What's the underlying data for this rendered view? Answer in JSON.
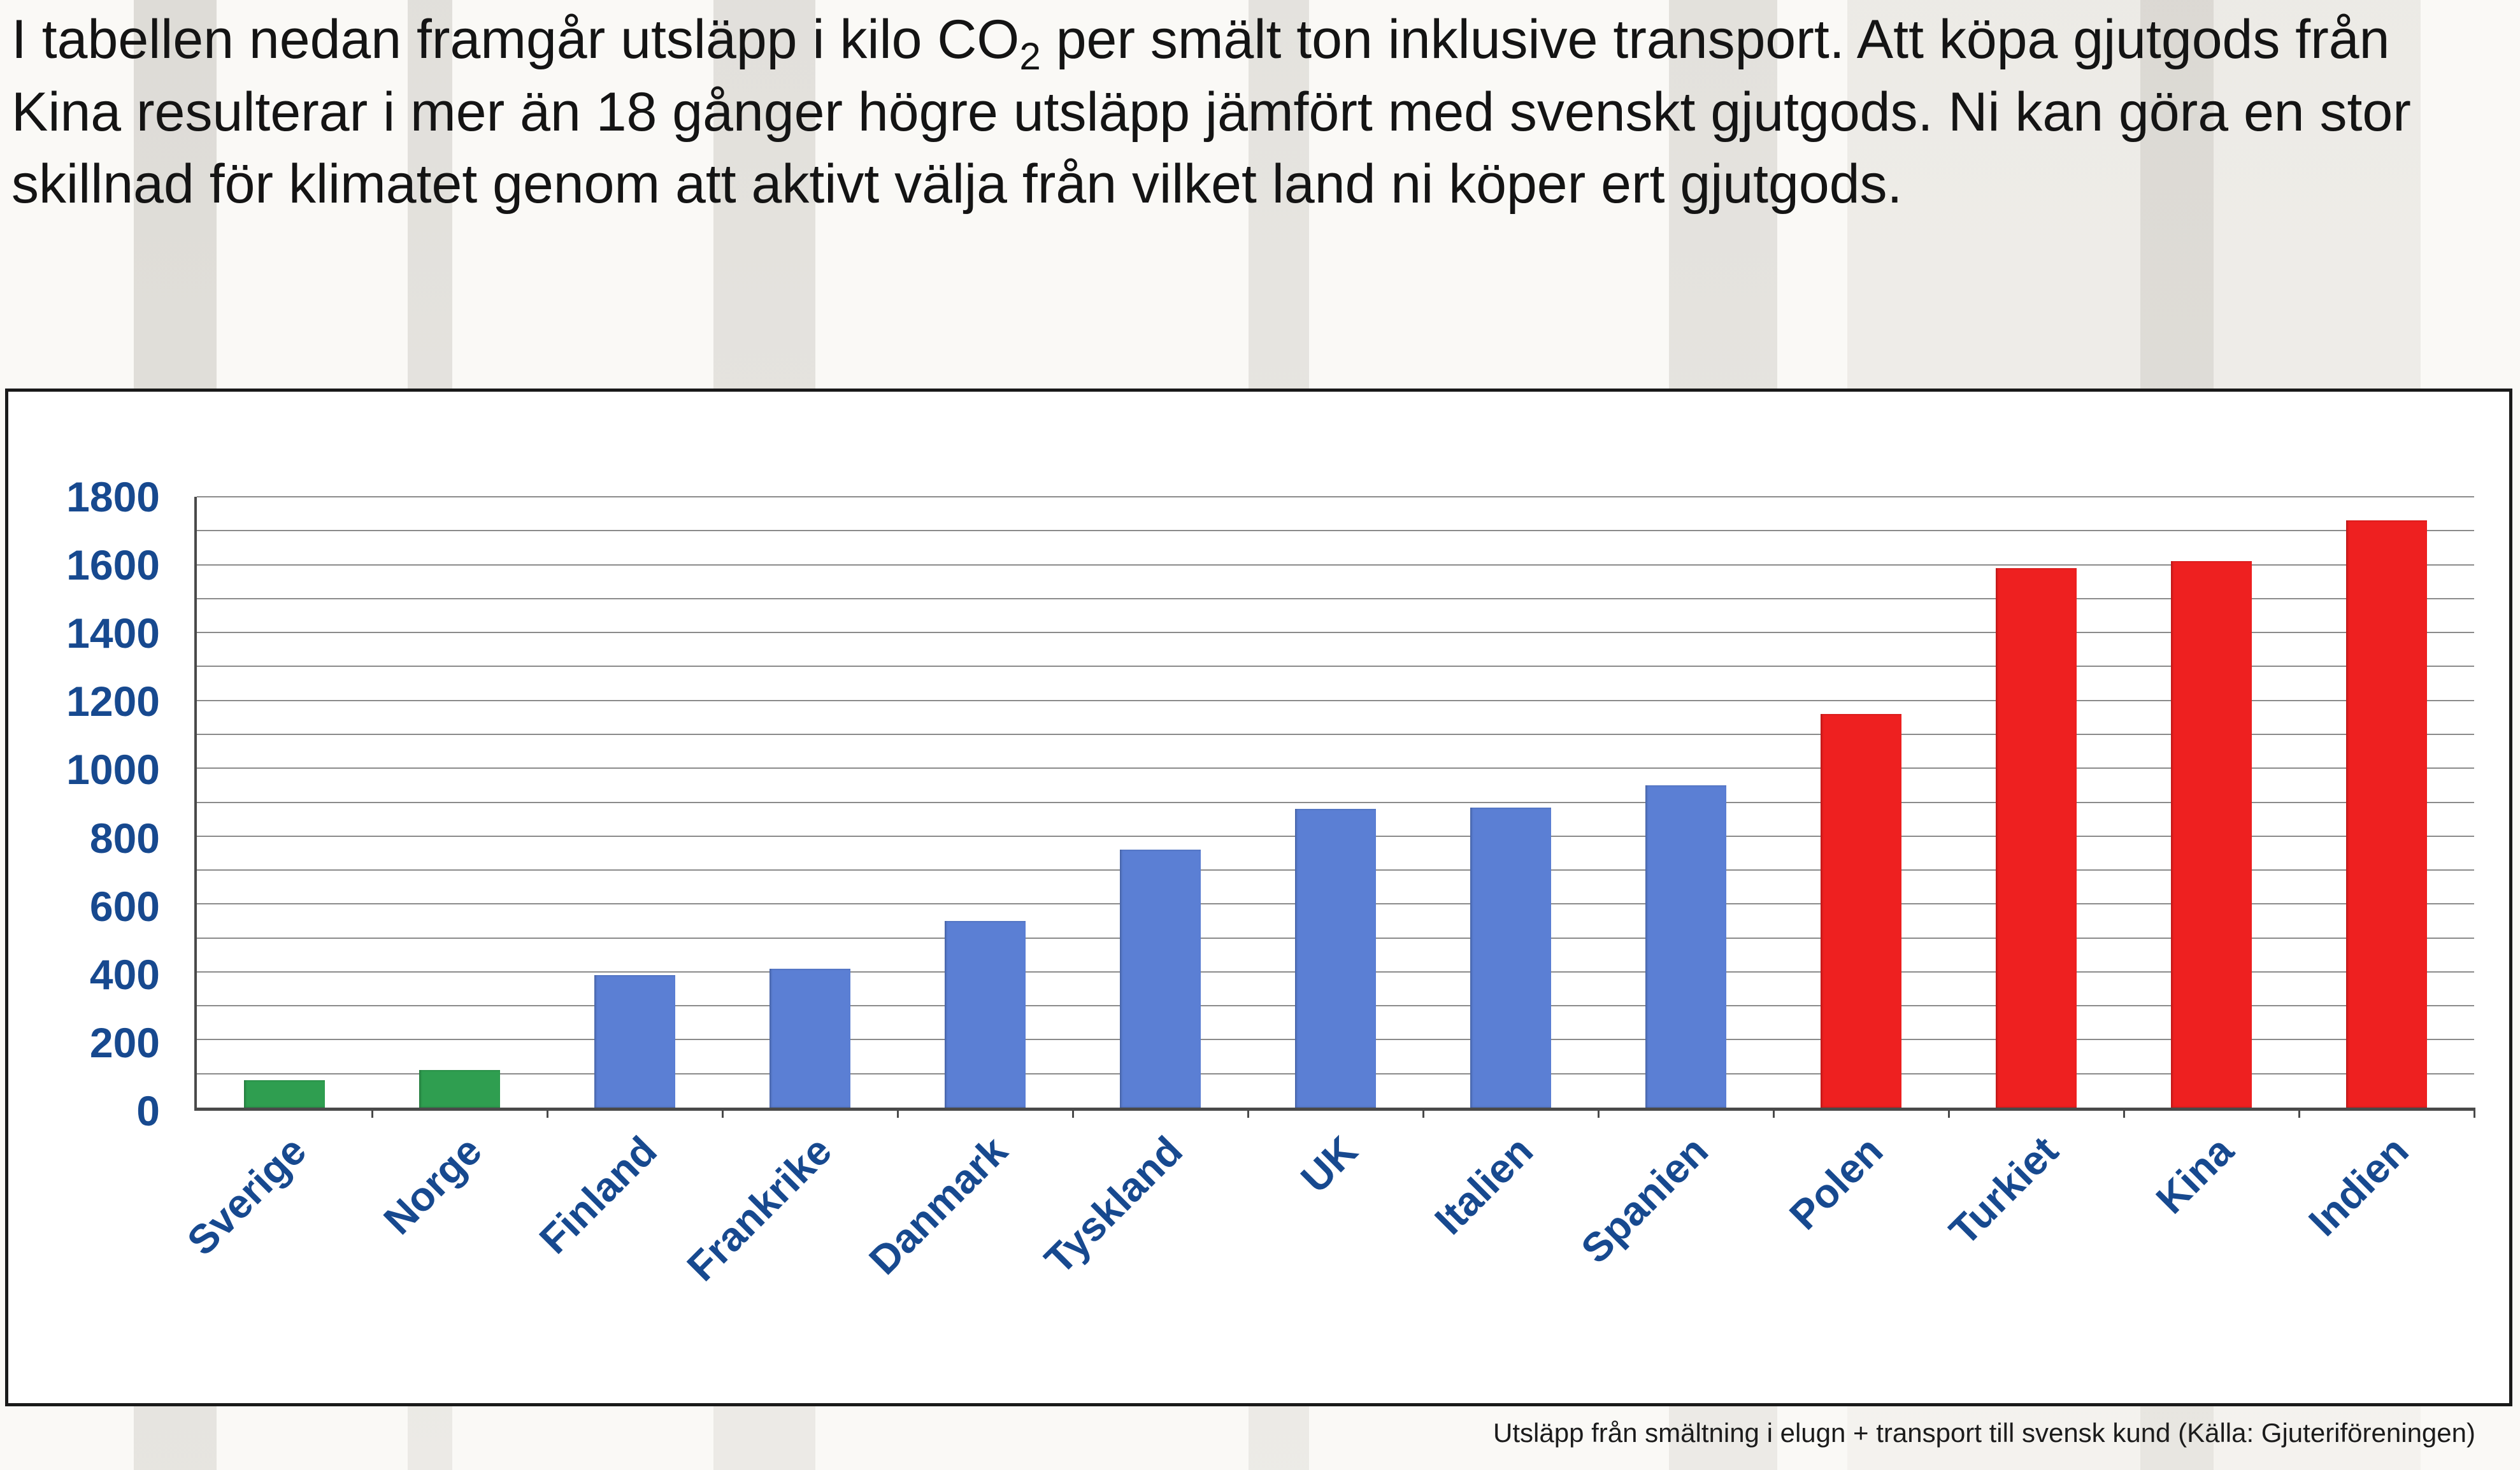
{
  "intro": {
    "text_before_sub": "I tabellen nedan framgår utsläpp i kilo CO",
    "subscript": "2",
    "text_after_sub": " per smält ton inklusive transport.  Att köpa gjutgods från Kina resulterar i mer än 18 gånger högre utsläpp jämfört med svenskt gjutgods. Ni kan göra en stor skillnad för klimatet genom att aktivt välja från vilket land ni köper ert gjutgods."
  },
  "chart_data": {
    "type": "bar",
    "title": "",
    "xlabel": "",
    "ylabel": "",
    "categories": [
      "Sverige",
      "Norge",
      "Finland",
      "Frankrike",
      "Danmark",
      "Tyskland",
      "UK",
      "Italien",
      "Spanien",
      "Polen",
      "Turkiet",
      "Kina",
      "Indien"
    ],
    "values": [
      80,
      110,
      390,
      410,
      550,
      760,
      880,
      885,
      950,
      1160,
      1590,
      1610,
      1730
    ],
    "bar_colors": [
      "#2f9e50",
      "#2f9e50",
      "#5b7fd4",
      "#5b7fd4",
      "#5b7fd4",
      "#5b7fd4",
      "#5b7fd4",
      "#5b7fd4",
      "#5b7fd4",
      "#ee2020",
      "#ee2020",
      "#ee2020",
      "#ee2020"
    ],
    "ylim": [
      0,
      1800
    ],
    "ytick_interval": 200,
    "gridline_interval": 100,
    "grid": true,
    "legend": "none"
  },
  "caption": "Utsläpp från smältning i elugn + transport till svensk kund  (Källa: Gjuteriföreningen)",
  "colors": {
    "green_bar": "#2f9e50",
    "blue_bar": "#5b7fd4",
    "red_bar": "#ee2020",
    "axis_label_blue": "#17498f",
    "panel_border": "#1a1a1a"
  }
}
